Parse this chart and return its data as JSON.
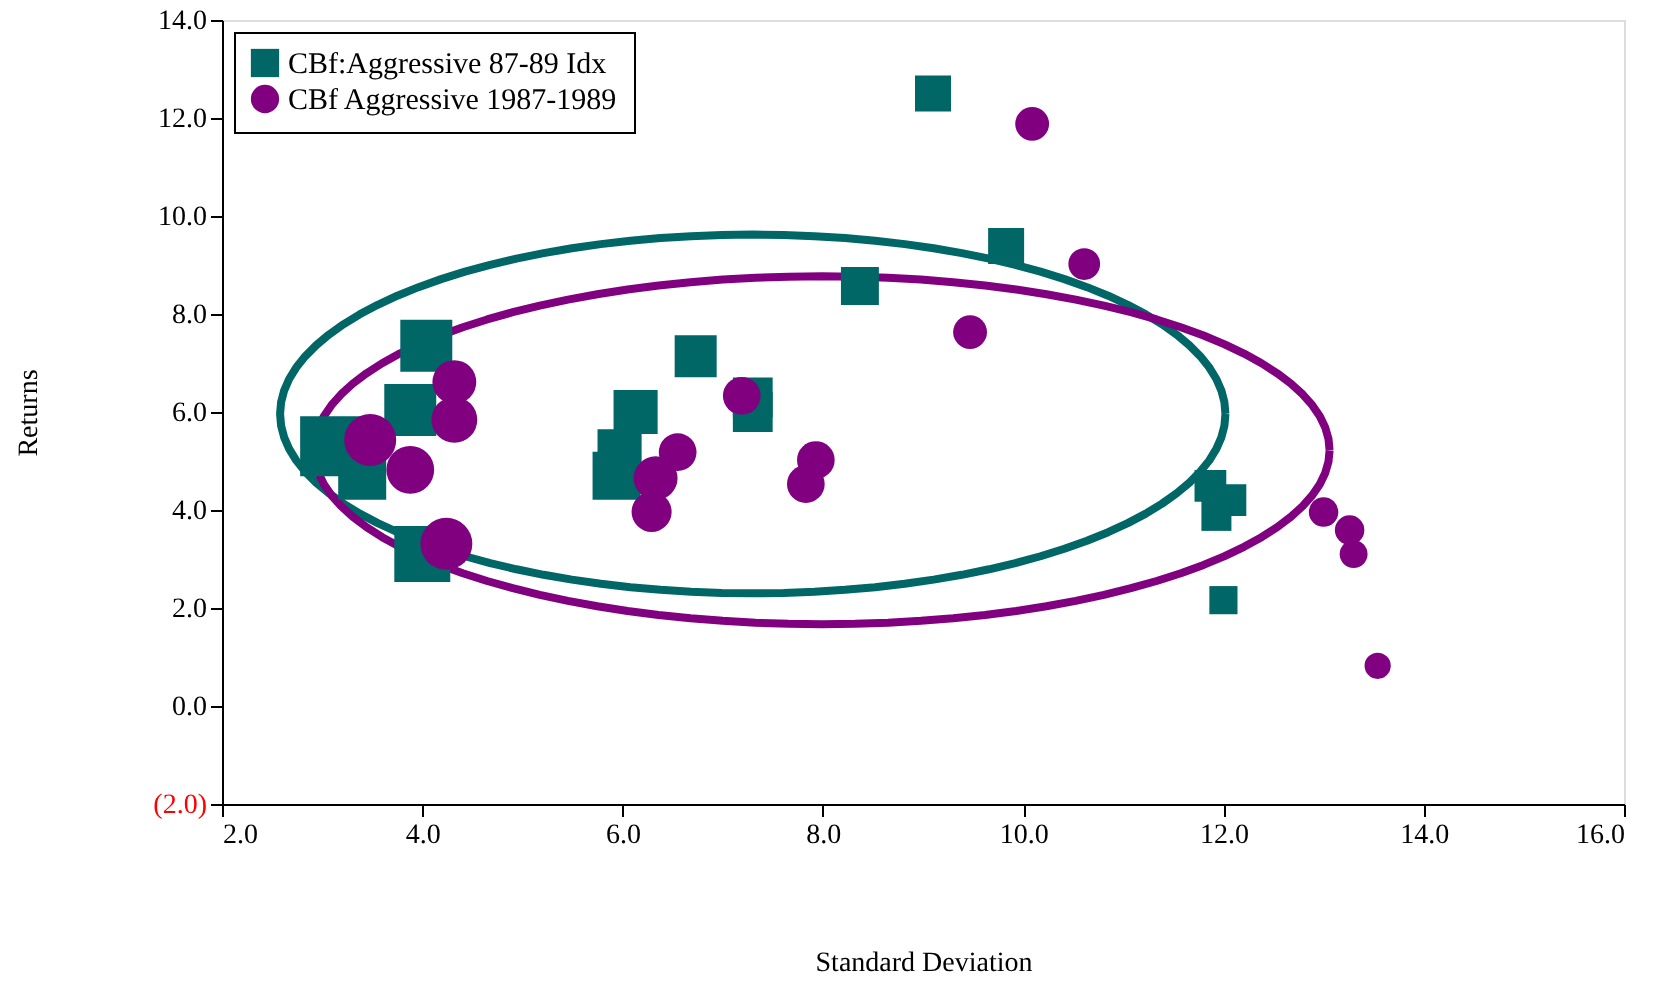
{
  "chart_data": {
    "type": "bubble",
    "xlabel": "Standard Deviation",
    "ylabel": "Returns",
    "xlim": [
      2,
      16
    ],
    "xticks": [
      {
        "value": 2,
        "label": "2.0"
      },
      {
        "value": 4,
        "label": "4.0"
      },
      {
        "value": 6,
        "label": "6.0"
      },
      {
        "value": 8,
        "label": "8.0"
      },
      {
        "value": 10,
        "label": "10.0"
      },
      {
        "value": 12,
        "label": "12.0"
      },
      {
        "value": 14,
        "label": "14.0"
      },
      {
        "value": 16,
        "label": "16.0"
      }
    ],
    "ylim": [
      -2,
      14
    ],
    "yticks": [
      {
        "value": -2,
        "label": "(2.0)"
      },
      {
        "value": 0,
        "label": "0.0"
      },
      {
        "value": 2,
        "label": "2.0"
      },
      {
        "value": 4,
        "label": "4.0"
      },
      {
        "value": 6,
        "label": "6.0"
      },
      {
        "value": 8,
        "label": "8.0"
      },
      {
        "value": 10,
        "label": "10.0"
      },
      {
        "value": 12,
        "label": "12.0"
      },
      {
        "value": 14,
        "label": "14.0"
      }
    ],
    "grid": false,
    "legend": "top left",
    "series": [
      {
        "name": "CBf:Aggressive 87-89 Idx",
        "color": "#006666",
        "marker": "square",
        "x": [
          9.1,
          3.08,
          4.0,
          4.04,
          3.88,
          3.4,
          5.97,
          6.13,
          5.94,
          6.73,
          7.3,
          7.3,
          8.37,
          9.83,
          11.87,
          12.07,
          11.93,
          12.0
        ],
        "values": [
          12.5,
          5.3,
          3.1,
          7.35,
          6.04,
          4.7,
          5.2,
          6.0,
          4.7,
          7.14,
          6.3,
          6.0,
          8.57,
          9.39,
          4.49,
          4.2,
          3.88,
          2.16
        ],
        "sizes": [
          0.36,
          1,
          0.87,
          0.75,
          0.75,
          0.64,
          0.54,
          0.54,
          0.64,
          0.49,
          0.44,
          0.44,
          0.4,
          0.36,
          0.28,
          0.28,
          0.25,
          0.22
        ]
      },
      {
        "name": "CBf Aggressive 1987-1989",
        "color": "#800080",
        "marker": "circle",
        "x": [
          10.09,
          10.61,
          9.47,
          13.0,
          13.26,
          13.3,
          13.54,
          4.32,
          4.32,
          3.48,
          3.88,
          4.24,
          7.19,
          6.55,
          6.33,
          6.29,
          7.93,
          7.83
        ],
        "values": [
          11.88,
          9.02,
          7.63,
          3.96,
          3.59,
          3.1,
          0.82,
          6.61,
          5.84,
          5.43,
          4.82,
          3.31,
          6.33,
          5.18,
          4.65,
          3.96,
          5.02,
          4.53
        ],
        "sizes": [
          0.25,
          0.22,
          0.25,
          0.19,
          0.19,
          0.17,
          0.15,
          0.42,
          0.46,
          0.59,
          0.5,
          0.59,
          0.31,
          0.31,
          0.42,
          0.35,
          0.31,
          0.31
        ]
      }
    ]
  }
}
